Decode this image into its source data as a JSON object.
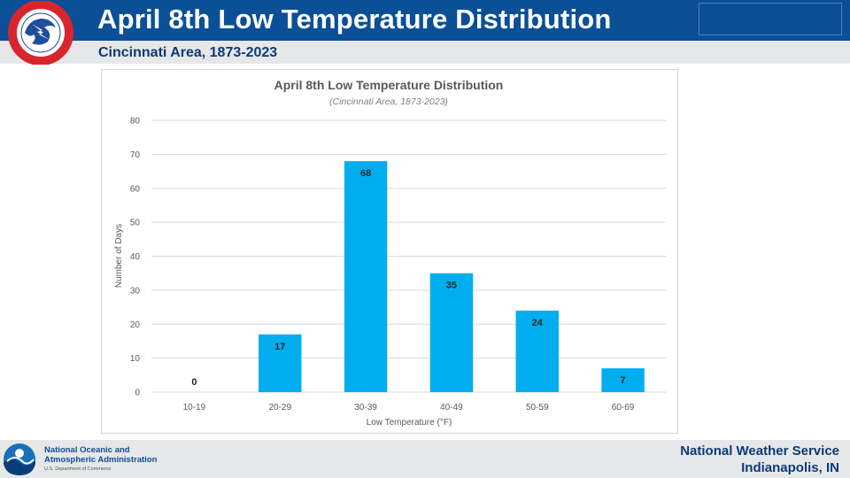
{
  "header": {
    "title": "April 8th Low Temperature Distribution",
    "subtitle": "Cincinnati Area, 1873-2023"
  },
  "footer": {
    "noaa_line1": "National Oceanic and",
    "noaa_line2": "Atmospheric Administration",
    "noaa_dept": "U.S. Department of Commerce",
    "office_name": "National Weather Service",
    "office_location": "Indianapolis, IN"
  },
  "colors": {
    "header_blue": "#0b4f96",
    "bar_fill": "#00aeef",
    "gridline": "#d9d9d9"
  },
  "icons": {
    "nws_logo": "nws-logo-icon",
    "noaa_logo": "noaa-logo-icon"
  },
  "chart_data": {
    "type": "bar",
    "title": "April 8th Low Temperature Distribution",
    "subtitle": "(Cincinnati Area, 1873-2023)",
    "xlabel": "Low Temperature (°F)",
    "ylabel": "Number of Days",
    "categories": [
      "10-19",
      "20-29",
      "30-39",
      "40-49",
      "50-59",
      "60-69"
    ],
    "values": [
      0,
      17,
      68,
      35,
      24,
      7
    ],
    "ylim": [
      0,
      80
    ],
    "yticks": [
      0,
      10,
      20,
      30,
      40,
      50,
      60,
      70,
      80
    ],
    "grid": true,
    "data_labels": true
  }
}
